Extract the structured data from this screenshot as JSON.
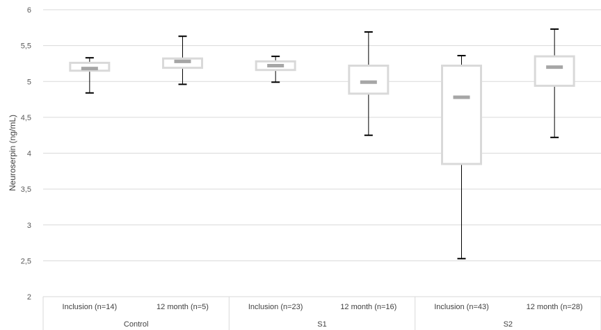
{
  "chart_data": {
    "type": "box",
    "title": "",
    "xlabel": "",
    "ylabel": "Neuroserpin (ng/mL)",
    "ylim": [
      2,
      6
    ],
    "yticks": [
      "2",
      "2,5",
      "3",
      "3,5",
      "4",
      "4,5",
      "5",
      "5,5",
      "6"
    ],
    "ytick_values": [
      2,
      2.5,
      3,
      3.5,
      4,
      4.5,
      5,
      5.5,
      6
    ],
    "grid": true,
    "groups": [
      "Control",
      "S1",
      "S2"
    ],
    "categories": [
      "Inclusion (n=14)",
      "12 month (n=5)",
      "Inclusion (n=23)",
      "12 month (n=16)",
      "Inclusion (n=43)",
      "12 month (n=28)"
    ],
    "boxes": [
      {
        "category": "Inclusion (n=14)",
        "group": "Control",
        "min": 4.84,
        "q1": 5.15,
        "median": 5.18,
        "q3": 5.26,
        "max": 5.33
      },
      {
        "category": "12 month (n=5)",
        "group": "Control",
        "min": 4.96,
        "q1": 5.19,
        "median": 5.28,
        "q3": 5.32,
        "max": 5.63
      },
      {
        "category": "Inclusion (n=23)",
        "group": "S1",
        "min": 4.99,
        "q1": 5.16,
        "median": 5.22,
        "q3": 5.28,
        "max": 5.35
      },
      {
        "category": "12 month (n=16)",
        "group": "S1",
        "min": 4.25,
        "q1": 4.83,
        "median": 4.99,
        "q3": 5.22,
        "max": 5.69
      },
      {
        "category": "Inclusion (n=43)",
        "group": "S2",
        "min": 2.53,
        "q1": 3.85,
        "median": 4.78,
        "q3": 5.22,
        "max": 5.36
      },
      {
        "category": "12 month (n=28)",
        "group": "S2",
        "min": 4.22,
        "q1": 4.94,
        "median": 5.2,
        "q3": 5.35,
        "max": 5.73
      }
    ],
    "colors": {
      "box_edge": "#d9d9d9",
      "median": "#a6a6a6",
      "whisker": "#000000",
      "grid": "#d9d9d9",
      "tick_text": "#595959",
      "label_text": "#404040"
    }
  }
}
